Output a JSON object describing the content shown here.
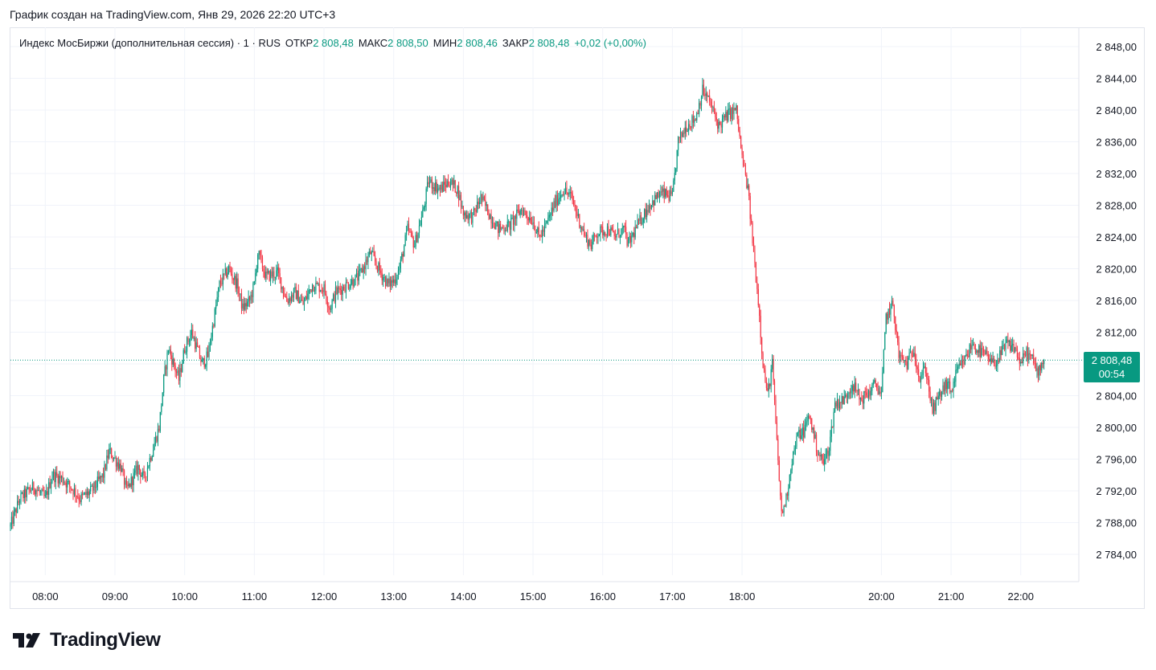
{
  "caption": "График создан на TradingView.com, Янв 29, 2026 22:20 UTC+3",
  "legend": {
    "symbol": "Индекс МосБиржи (дополнительная сессия) · 1 · RUS",
    "open_label": "ОТКР",
    "open_value": "2 808,48",
    "high_label": "МАКС",
    "high_value": "2 808,50",
    "low_label": "МИН",
    "low_value": "2 808,46",
    "close_label": "ЗАКР",
    "close_value": "2 808,48",
    "change": "+0,02 (+0,00%)"
  },
  "price_tag": {
    "value": "2 808,48",
    "countdown": "00:54",
    "color": "#089981"
  },
  "brand": {
    "logo_icon": "tradingview-logo-icon",
    "name": "TradingView"
  },
  "colors": {
    "up": "#089981",
    "down": "#f23645",
    "grid": "#f0f3fa",
    "text": "#131722"
  },
  "chart_data": {
    "type": "candlestick",
    "y_ticks": [
      2784,
      2788,
      2792,
      2796,
      2800,
      2804,
      2808,
      2812,
      2816,
      2820,
      2824,
      2828,
      2832,
      2836,
      2840,
      2844,
      2848
    ],
    "y_tick_labels": [
      "2 784,00",
      "2 788,00",
      "2 792,00",
      "2 796,00",
      "2 800,00",
      "2 804,00",
      "2 808,00",
      "2 812,00",
      "2 816,00",
      "2 820,00",
      "2 824,00",
      "2 828,00",
      "2 832,00",
      "2 836,00",
      "2 840,00",
      "2 844,00",
      "2 848,00"
    ],
    "ylim": [
      2781.8,
      2849.8
    ],
    "x_range": [
      "07:30",
      "22:50"
    ],
    "x_ticks": [
      "08:00",
      "09:00",
      "10:00",
      "11:00",
      "12:00",
      "13:00",
      "14:00",
      "15:00",
      "16:00",
      "17:00",
      "18:00",
      "20:00",
      "21:00",
      "22:00"
    ],
    "last_price": 2808.48,
    "grid": true,
    "close_path": [
      [
        "07:30",
        2787.5
      ],
      [
        "07:38",
        2791.0
      ],
      [
        "07:50",
        2792.5
      ],
      [
        "08:00",
        2791.0
      ],
      [
        "08:06",
        2794.0
      ],
      [
        "08:15",
        2793.5
      ],
      [
        "08:25",
        2792.0
      ],
      [
        "08:30",
        2791.0
      ],
      [
        "08:40",
        2792.0
      ],
      [
        "08:50",
        2794.0
      ],
      [
        "08:55",
        2797.0
      ],
      [
        "09:05",
        2795.0
      ],
      [
        "09:10",
        2792.0
      ],
      [
        "09:20",
        2795.0
      ],
      [
        "09:25",
        2793.5
      ],
      [
        "09:30",
        2796.0
      ],
      [
        "09:38",
        2800.0
      ],
      [
        "09:42",
        2806.0
      ],
      [
        "09:46",
        2810.0
      ],
      [
        "09:55",
        2806.0
      ],
      [
        "10:00",
        2810.0
      ],
      [
        "10:06",
        2812.0
      ],
      [
        "10:15",
        2808.0
      ],
      [
        "10:20",
        2809.0
      ],
      [
        "10:30",
        2818.0
      ],
      [
        "10:38",
        2820.0
      ],
      [
        "10:45",
        2818.0
      ],
      [
        "10:50",
        2815.0
      ],
      [
        "10:56",
        2816.0
      ],
      [
        "11:00",
        2818.0
      ],
      [
        "11:03",
        2822.0
      ],
      [
        "11:10",
        2819.0
      ],
      [
        "11:20",
        2819.5
      ],
      [
        "11:28",
        2816.0
      ],
      [
        "11:35",
        2817.0
      ],
      [
        "11:42",
        2815.5
      ],
      [
        "11:50",
        2818.0
      ],
      [
        "12:00",
        2817.5
      ],
      [
        "12:05",
        2815.0
      ],
      [
        "12:10",
        2817.0
      ],
      [
        "12:20",
        2818.0
      ],
      [
        "12:30",
        2819.0
      ],
      [
        "12:40",
        2822.0
      ],
      [
        "12:47",
        2820.0
      ],
      [
        "12:55",
        2818.0
      ],
      [
        "13:00",
        2818.5
      ],
      [
        "13:05",
        2820.0
      ],
      [
        "13:12",
        2825.0
      ],
      [
        "13:18",
        2823.0
      ],
      [
        "13:25",
        2827.0
      ],
      [
        "13:30",
        2831.0
      ],
      [
        "13:40",
        2830.0
      ],
      [
        "13:48",
        2831.0
      ],
      [
        "13:55",
        2830.0
      ],
      [
        "14:00",
        2827.0
      ],
      [
        "14:08",
        2826.5
      ],
      [
        "14:15",
        2829.0
      ],
      [
        "14:22",
        2827.0
      ],
      [
        "14:30",
        2825.0
      ],
      [
        "14:40",
        2825.5
      ],
      [
        "14:50",
        2827.5
      ],
      [
        "15:00",
        2826.0
      ],
      [
        "15:05",
        2824.0
      ],
      [
        "15:10",
        2825.0
      ],
      [
        "15:18",
        2828.0
      ],
      [
        "15:26",
        2830.0
      ],
      [
        "15:33",
        2829.0
      ],
      [
        "15:40",
        2826.0
      ],
      [
        "15:45",
        2824.0
      ],
      [
        "15:50",
        2823.0
      ],
      [
        "15:55",
        2824.5
      ],
      [
        "16:05",
        2825.0
      ],
      [
        "16:10",
        2824.0
      ],
      [
        "16:18",
        2825.0
      ],
      [
        "16:22",
        2823.0
      ],
      [
        "16:30",
        2825.5
      ],
      [
        "16:40",
        2828.0
      ],
      [
        "16:50",
        2829.5
      ],
      [
        "17:00",
        2829.0
      ],
      [
        "17:05",
        2836.0
      ],
      [
        "17:12",
        2838.0
      ],
      [
        "17:20",
        2839.0
      ],
      [
        "17:26",
        2842.5
      ],
      [
        "17:32",
        2841.0
      ],
      [
        "17:40",
        2838.0
      ],
      [
        "17:48",
        2839.5
      ],
      [
        "17:55",
        2840.0
      ],
      [
        "18:00",
        2834.0
      ],
      [
        "18:05",
        2830.0
      ],
      [
        "18:10",
        2822.0
      ],
      [
        "18:14",
        2816.0
      ],
      [
        "18:18",
        2808.0
      ],
      [
        "18:22",
        2804.0
      ],
      [
        "18:26",
        2808.0
      ],
      [
        "18:30",
        2798.0
      ],
      [
        "18:34",
        2789.0
      ],
      [
        "18:38",
        2791.0
      ],
      [
        "18:43",
        2796.0
      ],
      [
        "18:48",
        2799.0
      ],
      [
        "18:53",
        2799.5
      ],
      [
        "18:58",
        2801.5
      ],
      [
        "19:05",
        2797.0
      ],
      [
        "19:10",
        2795.5
      ],
      [
        "19:15",
        2797.5
      ],
      [
        "19:20",
        2803.0
      ],
      [
        "19:28",
        2803.5
      ],
      [
        "19:35",
        2805.5
      ],
      [
        "19:42",
        2803.5
      ],
      [
        "19:50",
        2804.5
      ],
      [
        "19:55",
        2805.5
      ],
      [
        "20:00",
        2804.0
      ],
      [
        "20:04",
        2814.0
      ],
      [
        "20:10",
        2815.5
      ],
      [
        "20:15",
        2809.0
      ],
      [
        "20:22",
        2808.0
      ],
      [
        "20:28",
        2810.0
      ],
      [
        "20:33",
        2806.0
      ],
      [
        "20:38",
        2807.5
      ],
      [
        "20:44",
        2802.0
      ],
      [
        "20:50",
        2804.0
      ],
      [
        "20:56",
        2805.5
      ],
      [
        "21:00",
        2804.5
      ],
      [
        "21:05",
        2807.0
      ],
      [
        "21:12",
        2808.5
      ],
      [
        "21:18",
        2810.5
      ],
      [
        "21:25",
        2809.5
      ],
      [
        "21:30",
        2809.0
      ],
      [
        "21:35",
        2808.0
      ],
      [
        "21:40",
        2808.5
      ],
      [
        "21:48",
        2810.5
      ],
      [
        "21:55",
        2810.0
      ],
      [
        "22:00",
        2808.0
      ],
      [
        "22:05",
        2809.5
      ],
      [
        "22:10",
        2808.5
      ],
      [
        "22:14",
        2807.0
      ],
      [
        "22:20",
        2808.48
      ]
    ]
  }
}
